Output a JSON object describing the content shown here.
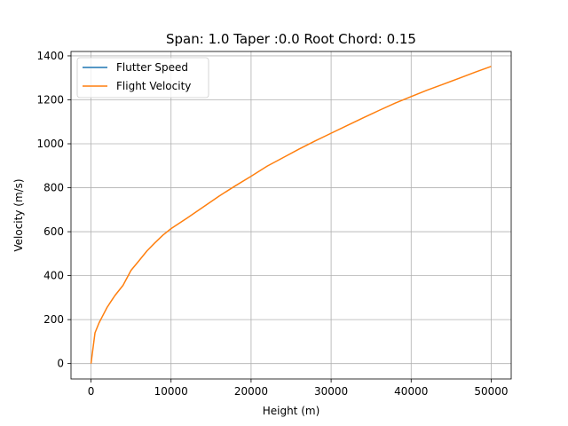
{
  "chart_data": {
    "type": "line",
    "title": "Span: 1.0 Taper :0.0 Root Chord: 0.15",
    "xlabel": "Height (m)",
    "ylabel": "Velocity (m/s)",
    "xlim": [
      -2500,
      52500
    ],
    "ylim": [
      -70,
      1420
    ],
    "xticks": [
      0,
      10000,
      20000,
      30000,
      40000,
      50000
    ],
    "yticks": [
      0,
      200,
      400,
      600,
      800,
      1000,
      1200,
      1400
    ],
    "grid": true,
    "legend_position": "upper-left",
    "series": [
      {
        "name": "Flutter Speed",
        "color": "#1f77b4",
        "points": []
      },
      {
        "name": "Flight Velocity",
        "color": "#ff7f0e",
        "points": [
          [
            0,
            0
          ],
          [
            500,
            140
          ],
          [
            1000,
            185
          ],
          [
            1500,
            220
          ],
          [
            2000,
            255
          ],
          [
            2500,
            283
          ],
          [
            3000,
            310
          ],
          [
            4000,
            356
          ],
          [
            5000,
            424
          ],
          [
            6000,
            468
          ],
          [
            7000,
            513
          ],
          [
            8000,
            550
          ],
          [
            9000,
            585
          ],
          [
            10000,
            614
          ],
          [
            12000,
            662
          ],
          [
            14000,
            712
          ],
          [
            16000,
            762
          ],
          [
            18000,
            808
          ],
          [
            20000,
            852
          ],
          [
            22000,
            898
          ],
          [
            24000,
            937
          ],
          [
            26000,
            976
          ],
          [
            28000,
            1013
          ],
          [
            30000,
            1048
          ],
          [
            32000,
            1083
          ],
          [
            34000,
            1118
          ],
          [
            36000,
            1152
          ],
          [
            38000,
            1185
          ],
          [
            40000,
            1215
          ],
          [
            42000,
            1244
          ],
          [
            44000,
            1271
          ],
          [
            46000,
            1298
          ],
          [
            48000,
            1326
          ],
          [
            50000,
            1352
          ]
        ]
      }
    ]
  }
}
